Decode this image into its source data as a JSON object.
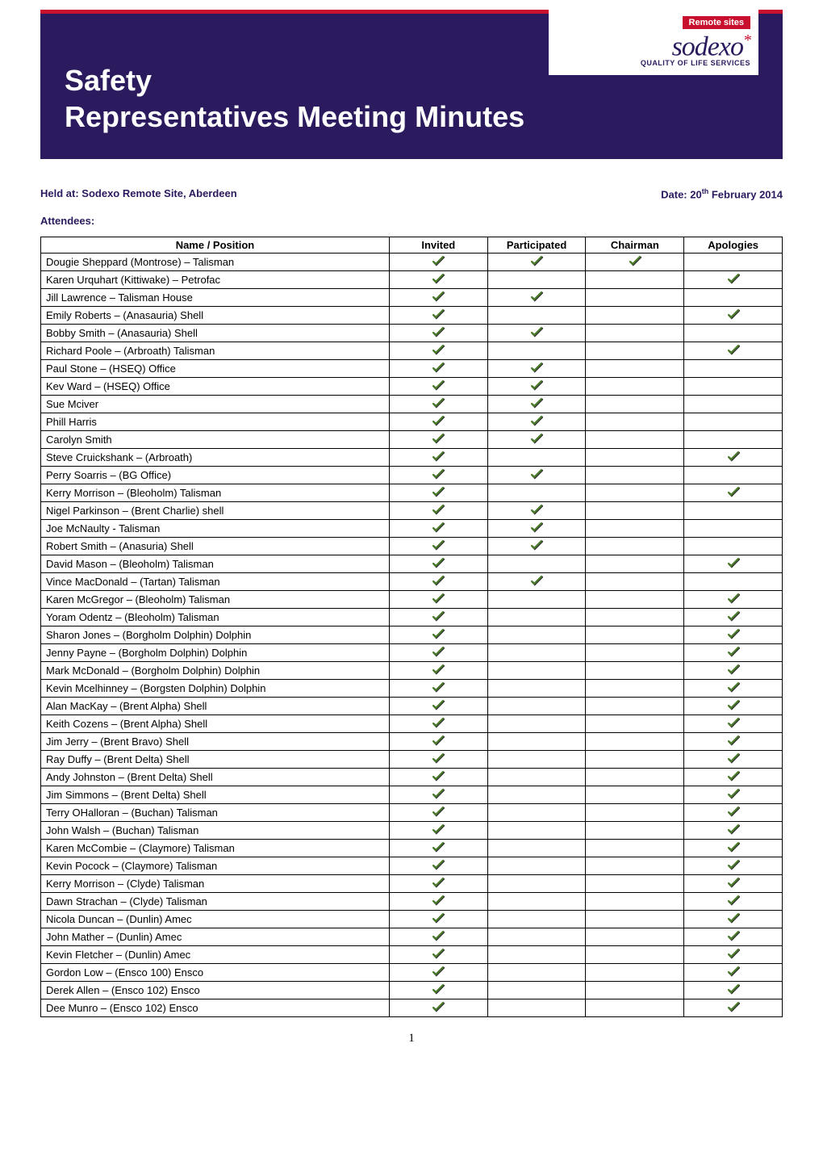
{
  "colors": {
    "brand_navy": "#2b1a5e",
    "brand_red": "#c8102e",
    "check_green": "#4a7c2a",
    "check_shadow": "#333333",
    "white": "#ffffff",
    "black": "#000000"
  },
  "badge": {
    "remote_sites": "Remote sites",
    "logo_text": "sodexo",
    "logo_sub": "QUALITY OF LIFE SERVICES"
  },
  "title": {
    "line1": "Safety",
    "line2": "Representatives Meeting Minutes"
  },
  "meta": {
    "held_at_label": "Held at: ",
    "held_at_value": "Sodexo Remote Site, Aberdeen",
    "date_label": "Date: ",
    "date_day": "20",
    "date_suffix": "th",
    "date_rest": " February 2014"
  },
  "attendees_label": "Attendees:",
  "table": {
    "headers": {
      "name": "Name / Position",
      "invited": "Invited",
      "participated": "Participated",
      "chairman": "Chairman",
      "apologies": "Apologies"
    },
    "rows": [
      {
        "name": "Dougie Sheppard (Montrose) – Talisman",
        "invited": true,
        "participated": true,
        "chairman": true,
        "apologies": false
      },
      {
        "name": "Karen Urquhart (Kittiwake) – Petrofac",
        "invited": true,
        "participated": false,
        "chairman": false,
        "apologies": true
      },
      {
        "name": "Jill Lawrence – Talisman House",
        "invited": true,
        "participated": true,
        "chairman": false,
        "apologies": false
      },
      {
        "name": "Emily Roberts – (Anasauria) Shell",
        "invited": true,
        "participated": false,
        "chairman": false,
        "apologies": true
      },
      {
        "name": "Bobby Smith – (Anasauria) Shell",
        "invited": true,
        "participated": true,
        "chairman": false,
        "apologies": false
      },
      {
        "name": "Richard Poole – (Arbroath) Talisman",
        "invited": true,
        "participated": false,
        "chairman": false,
        "apologies": true
      },
      {
        "name": "Paul Stone – (HSEQ) Office",
        "invited": true,
        "participated": true,
        "chairman": false,
        "apologies": false
      },
      {
        "name": "Kev Ward – (HSEQ) Office",
        "invited": true,
        "participated": true,
        "chairman": false,
        "apologies": false
      },
      {
        "name": "Sue Mciver",
        "invited": true,
        "participated": true,
        "chairman": false,
        "apologies": false
      },
      {
        "name": "Phill Harris",
        "invited": true,
        "participated": true,
        "chairman": false,
        "apologies": false
      },
      {
        "name": "Carolyn Smith",
        "invited": true,
        "participated": true,
        "chairman": false,
        "apologies": false
      },
      {
        "name": "Steve Cruickshank – (Arbroath)",
        "invited": true,
        "participated": false,
        "chairman": false,
        "apologies": true
      },
      {
        "name": "Perry Soarris – (BG Office)",
        "invited": true,
        "participated": true,
        "chairman": false,
        "apologies": false
      },
      {
        "name": "Kerry Morrison – (Bleoholm) Talisman",
        "invited": true,
        "participated": false,
        "chairman": false,
        "apologies": true
      },
      {
        "name": "Nigel Parkinson – (Brent Charlie) shell",
        "invited": true,
        "participated": true,
        "chairman": false,
        "apologies": false
      },
      {
        "name": "Joe McNaulty - Talisman",
        "invited": true,
        "participated": true,
        "chairman": false,
        "apologies": false
      },
      {
        "name": "Robert Smith – (Anasuria) Shell",
        "invited": true,
        "participated": true,
        "chairman": false,
        "apologies": false
      },
      {
        "name": "David Mason – (Bleoholm) Talisman",
        "invited": true,
        "participated": false,
        "chairman": false,
        "apologies": true
      },
      {
        "name": "Vince MacDonald – (Tartan) Talisman",
        "invited": true,
        "participated": true,
        "chairman": false,
        "apologies": false
      },
      {
        "name": "Karen McGregor – (Bleoholm) Talisman",
        "invited": true,
        "participated": false,
        "chairman": false,
        "apologies": true
      },
      {
        "name": "Yoram Odentz – (Bleoholm) Talisman",
        "invited": true,
        "participated": false,
        "chairman": false,
        "apologies": true
      },
      {
        "name": "Sharon Jones – (Borgholm Dolphin) Dolphin",
        "invited": true,
        "participated": false,
        "chairman": false,
        "apologies": true
      },
      {
        "name": "Jenny Payne – (Borgholm Dolphin) Dolphin",
        "invited": true,
        "participated": false,
        "chairman": false,
        "apologies": true
      },
      {
        "name": "Mark McDonald – (Borgholm Dolphin) Dolphin",
        "invited": true,
        "participated": false,
        "chairman": false,
        "apologies": true
      },
      {
        "name": "Kevin Mcelhinney – (Borgsten Dolphin) Dolphin",
        "invited": true,
        "participated": false,
        "chairman": false,
        "apologies": true
      },
      {
        "name": "Alan MacKay – (Brent Alpha) Shell",
        "invited": true,
        "participated": false,
        "chairman": false,
        "apologies": true
      },
      {
        "name": "Keith Cozens – (Brent Alpha) Shell",
        "invited": true,
        "participated": false,
        "chairman": false,
        "apologies": true
      },
      {
        "name": "Jim Jerry – (Brent Bravo) Shell",
        "invited": true,
        "participated": false,
        "chairman": false,
        "apologies": true
      },
      {
        "name": "Ray Duffy – (Brent Delta) Shell",
        "invited": true,
        "participated": false,
        "chairman": false,
        "apologies": true
      },
      {
        "name": "Andy Johnston – (Brent Delta) Shell",
        "invited": true,
        "participated": false,
        "chairman": false,
        "apologies": true
      },
      {
        "name": "Jim Simmons – (Brent Delta) Shell",
        "invited": true,
        "participated": false,
        "chairman": false,
        "apologies": true
      },
      {
        "name": "Terry OHalloran – (Buchan) Talisman",
        "invited": true,
        "participated": false,
        "chairman": false,
        "apologies": true
      },
      {
        "name": "John Walsh – (Buchan) Talisman",
        "invited": true,
        "participated": false,
        "chairman": false,
        "apologies": true
      },
      {
        "name": "Karen McCombie – (Claymore) Talisman",
        "invited": true,
        "participated": false,
        "chairman": false,
        "apologies": true
      },
      {
        "name": "Kevin Pocock – (Claymore) Talisman",
        "invited": true,
        "participated": false,
        "chairman": false,
        "apologies": true
      },
      {
        "name": "Kerry Morrison – (Clyde) Talisman",
        "invited": true,
        "participated": false,
        "chairman": false,
        "apologies": true
      },
      {
        "name": "Dawn Strachan – (Clyde) Talisman",
        "invited": true,
        "participated": false,
        "chairman": false,
        "apologies": true
      },
      {
        "name": "Nicola Duncan – (Dunlin) Amec",
        "invited": true,
        "participated": false,
        "chairman": false,
        "apologies": true
      },
      {
        "name": "John Mather – (Dunlin) Amec",
        "invited": true,
        "participated": false,
        "chairman": false,
        "apologies": true
      },
      {
        "name": "Kevin Fletcher – (Dunlin) Amec",
        "invited": true,
        "participated": false,
        "chairman": false,
        "apologies": true
      },
      {
        "name": "Gordon Low – (Ensco 100) Ensco",
        "invited": true,
        "participated": false,
        "chairman": false,
        "apologies": true
      },
      {
        "name": "Derek Allen – (Ensco 102) Ensco",
        "invited": true,
        "participated": false,
        "chairman": false,
        "apologies": true
      },
      {
        "name": "Dee Munro – (Ensco 102) Ensco",
        "invited": true,
        "participated": false,
        "chairman": false,
        "apologies": true
      }
    ]
  },
  "page_number": "1"
}
